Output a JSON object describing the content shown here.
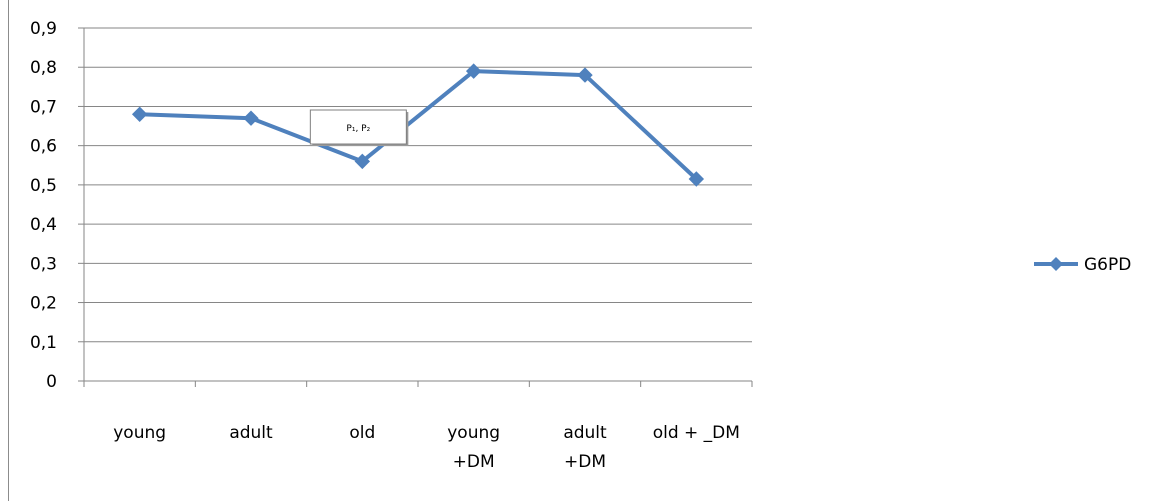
{
  "chart_data": {
    "type": "line",
    "categories": [
      "young",
      "adult",
      "old",
      "young\n+DM",
      "adult\n+DM",
      "old + _DM"
    ],
    "series": [
      {
        "name": "G6PD",
        "values": [
          0.68,
          0.67,
          0.56,
          0.79,
          0.78,
          0.515
        ],
        "color": "#4f81bd"
      }
    ],
    "ylim": [
      0,
      0.9
    ],
    "yticks": [
      "0",
      "0,1",
      "0,2",
      "0,3",
      "0,4",
      "0,5",
      "0,6",
      "0,7",
      "0,8",
      "0,9"
    ],
    "grid": true,
    "legend_position": "right",
    "annotation": {
      "text": "P₁, P₂",
      "anchor_category": "old"
    },
    "title": "",
    "xlabel": "",
    "ylabel": ""
  }
}
